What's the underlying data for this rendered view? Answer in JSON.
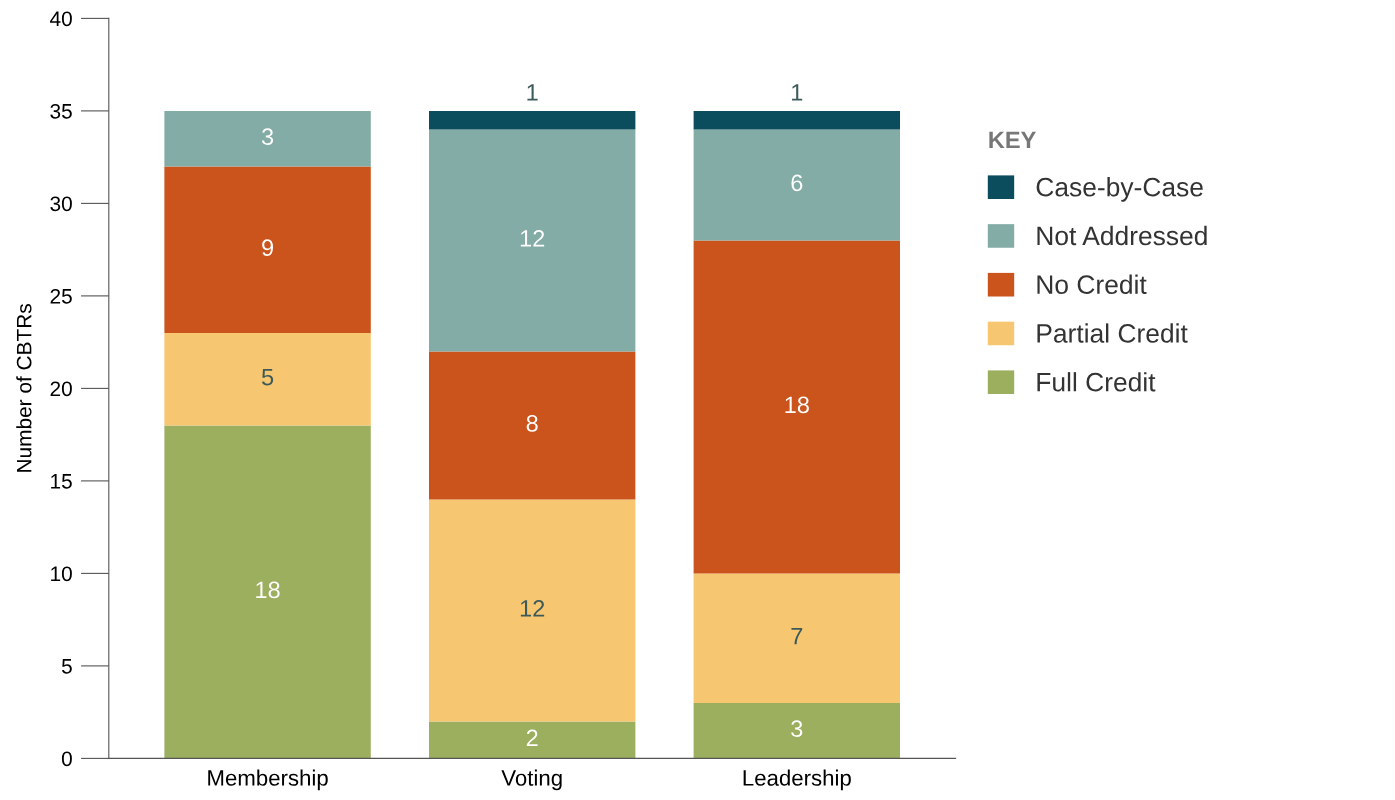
{
  "chart_data": {
    "type": "bar",
    "stacked": true,
    "ylabel": "Number of CBTRs",
    "categories": [
      "Membership",
      "Voting",
      "Leadership"
    ],
    "series": [
      {
        "name": "Full Credit",
        "color": "#9caf5e",
        "values": [
          18,
          2,
          3
        ]
      },
      {
        "name": "Partial Credit",
        "color": "#f7c670",
        "values": [
          5,
          12,
          7
        ]
      },
      {
        "name": "No Credit",
        "color": "#cb541c",
        "values": [
          9,
          8,
          18
        ]
      },
      {
        "name": "Not Addressed",
        "color": "#84aca6",
        "values": [
          3,
          12,
          6
        ]
      },
      {
        "name": "Case-by-Case",
        "color": "#0b4d5c",
        "values": [
          null,
          1,
          1
        ]
      }
    ],
    "ylim": [
      0,
      40
    ],
    "yticks": [
      0,
      5,
      10,
      15,
      20,
      25,
      30,
      35,
      40
    ],
    "data_labels": true,
    "legend": "right",
    "legend_title": "KEY",
    "grid": false
  }
}
